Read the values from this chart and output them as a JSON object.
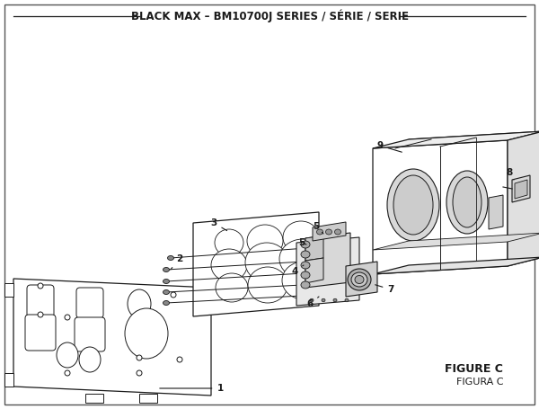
{
  "title": "BLACK MAX – BM10700J SERIES / SÉRIE / SERIE",
  "figure_label": "FIGURE C",
  "figura_label": "FIGURA C",
  "bg_color": "#ffffff",
  "border_color": "#444444",
  "line_color": "#1a1a1a",
  "title_fontsize": 8.5,
  "label_fontsize": 7.5,
  "figure_label_fontsize": 9
}
